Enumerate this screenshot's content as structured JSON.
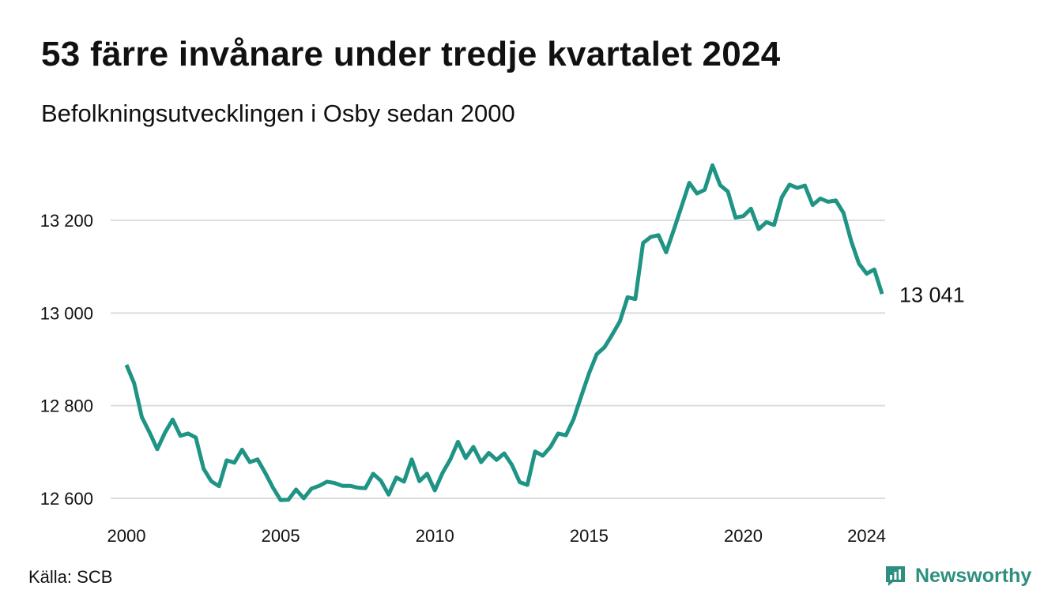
{
  "header": {
    "title": "53 färre invånare under tredje kvartalet 2024",
    "subtitle": "Befolkningsutvecklingen i Osby sedan 2000"
  },
  "footer": {
    "source": "Källa: SCB",
    "brand": "Newsworthy",
    "brand_icon": "newsworthy-logo-icon",
    "brand_color": "#2e8f7f"
  },
  "chart_data": {
    "type": "line",
    "title": "53 färre invånare under tredje kvartalet 2024",
    "subtitle": "Befolkningsutvecklingen i Osby sedan 2000",
    "xlabel": "",
    "ylabel": "",
    "x_tick_labels": [
      "2000",
      "2005",
      "2010",
      "2015",
      "2020",
      "2024"
    ],
    "x_tick_values": [
      2000,
      2005,
      2010,
      2015,
      2020,
      2024
    ],
    "y_tick_labels": [
      "12 600",
      "12 800",
      "13 000",
      "13 200"
    ],
    "y_tick_values": [
      12600,
      12800,
      13000,
      13200
    ],
    "ylim": [
      12600,
      13300
    ],
    "xlim": [
      2000,
      2024.75
    ],
    "grid": "horizontal",
    "legend": "none",
    "line_color": "#1f9485",
    "end_label": "13 041",
    "series": [
      {
        "x": [
          2000.0,
          2000.25,
          2000.5,
          2000.75,
          2001.0,
          2001.25,
          2001.5,
          2001.75,
          2002.0,
          2002.25,
          2002.5,
          2002.75,
          2003.0,
          2003.25,
          2003.5,
          2003.75,
          2004.0,
          2004.25,
          2004.5,
          2004.75,
          2005.0,
          2005.25,
          2005.5,
          2005.75,
          2006.0,
          2006.25,
          2006.5,
          2006.75,
          2007.0,
          2007.25,
          2007.5,
          2007.75,
          2008.0,
          2008.25,
          2008.5,
          2008.75,
          2009.0,
          2009.25,
          2009.5,
          2009.75,
          2010.0,
          2010.25,
          2010.5,
          2010.75,
          2011.0,
          2011.25,
          2011.5,
          2011.75,
          2012.0,
          2012.25,
          2012.5,
          2012.75,
          2013.0,
          2013.25,
          2013.5,
          2013.75,
          2014.0,
          2014.25,
          2014.5,
          2014.75,
          2015.0,
          2015.25,
          2015.5,
          2015.75,
          2016.0,
          2016.25,
          2016.5,
          2016.75,
          2017.0,
          2017.25,
          2017.5,
          2017.75,
          2018.0,
          2018.25,
          2018.5,
          2018.75,
          2019.0,
          2019.25,
          2019.5,
          2019.75,
          2020.0,
          2020.25,
          2020.5,
          2020.75,
          2021.0,
          2021.25,
          2021.5,
          2021.75,
          2022.0,
          2022.25,
          2022.5,
          2022.75,
          2023.0,
          2023.25,
          2023.5,
          2023.75,
          2024.0,
          2024.25,
          2024.5
        ],
        "values": [
          12888,
          12848,
          12775,
          12742,
          12706,
          12742,
          12770,
          12735,
          12740,
          12731,
          12664,
          12637,
          12626,
          12682,
          12677,
          12705,
          12678,
          12684,
          12655,
          12623,
          12596,
          12597,
          12619,
          12600,
          12621,
          12627,
          12636,
          12633,
          12627,
          12627,
          12623,
          12622,
          12653,
          12638,
          12608,
          12645,
          12636,
          12684,
          12637,
          12653,
          12617,
          12655,
          12684,
          12722,
          12687,
          12711,
          12678,
          12698,
          12683,
          12697,
          12672,
          12635,
          12629,
          12701,
          12692,
          12711,
          12740,
          12736,
          12771,
          12821,
          12870,
          12911,
          12926,
          12953,
          12982,
          13034,
          13030,
          13151,
          13164,
          13168,
          13131,
          13180,
          13230,
          13281,
          13258,
          13266,
          13319,
          13276,
          13262,
          13206,
          13209,
          13225,
          13181,
          13196,
          13190,
          13250,
          13277,
          13270,
          13275,
          13233,
          13247,
          13240,
          13243,
          13216,
          13155,
          13107,
          13085,
          13094,
          13041
        ]
      }
    ]
  }
}
